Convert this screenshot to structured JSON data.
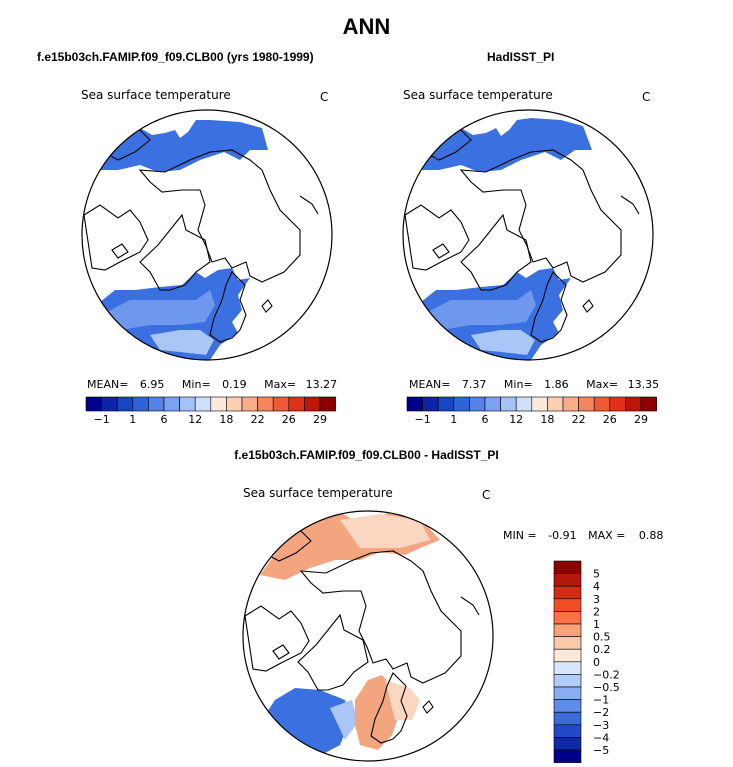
{
  "title": "ANN",
  "panels": [
    {
      "heading": "f.e15b03ch.FAMIP.f09_f09.CLB00 (yrs 1980-1999)",
      "field_label": "Sea surface temperature",
      "units": "C",
      "stats": {
        "mean_label": "MEAN=",
        "mean": "6.95",
        "min_label": "Min=",
        "min": "0.19",
        "max_label": "Max=",
        "max": "13.27"
      }
    },
    {
      "heading": "HadISST_PI",
      "field_label": "Sea surface temperature",
      "units": "C",
      "stats": {
        "mean_label": "MEAN=",
        "mean": "7.37",
        "min_label": "Min=",
        "min": "1.86",
        "max_label": "Max=",
        "max": "13.35"
      }
    },
    {
      "heading": "f.e15b03ch.FAMIP.f09_f09.CLB00 - HadISST_PI",
      "field_label": "Sea surface temperature",
      "units": "C",
      "stats": {
        "min_label": "MIN =",
        "min": "-0.91",
        "max_label": "MAX =",
        "max": "0.88"
      }
    }
  ],
  "colorbar_horizontal": {
    "colors": [
      "#00008b",
      "#0b24a8",
      "#1845c2",
      "#2f63d8",
      "#5383e8",
      "#7ba3f2",
      "#a4c2f8",
      "#cfe0fb",
      "#fde9da",
      "#fcd0b4",
      "#f9ad8a",
      "#f58660",
      "#ee5a36",
      "#dd3119",
      "#bc160b",
      "#8b0000"
    ],
    "tick_labels": [
      "-1",
      "1",
      "6",
      "12",
      "18",
      "22",
      "26",
      "29"
    ]
  },
  "colorbar_vertical": {
    "colors": [
      "#8b0000",
      "#b4170b",
      "#d52b14",
      "#ef4d22",
      "#f87447",
      "#f9a178",
      "#fbc8ab",
      "#fde9da",
      "#d8e6fb",
      "#b2cdf8",
      "#88aef1",
      "#5d8be6",
      "#3c6ad8",
      "#2248c4",
      "#0f2aa6",
      "#00008b"
    ],
    "tick_labels": [
      "5",
      "4",
      "3",
      "2",
      "1",
      "0.5",
      "0.2",
      "0",
      "-0.2",
      "-0.5",
      "-1",
      "-2",
      "-3",
      "-4",
      "-5"
    ]
  },
  "colors": {
    "cold": "#3a70e0",
    "mid_cold": "#6e98ee",
    "light_cold": "#a9c6f7",
    "warm": "#f3a57f",
    "light_warm": "#fbd6c0"
  }
}
